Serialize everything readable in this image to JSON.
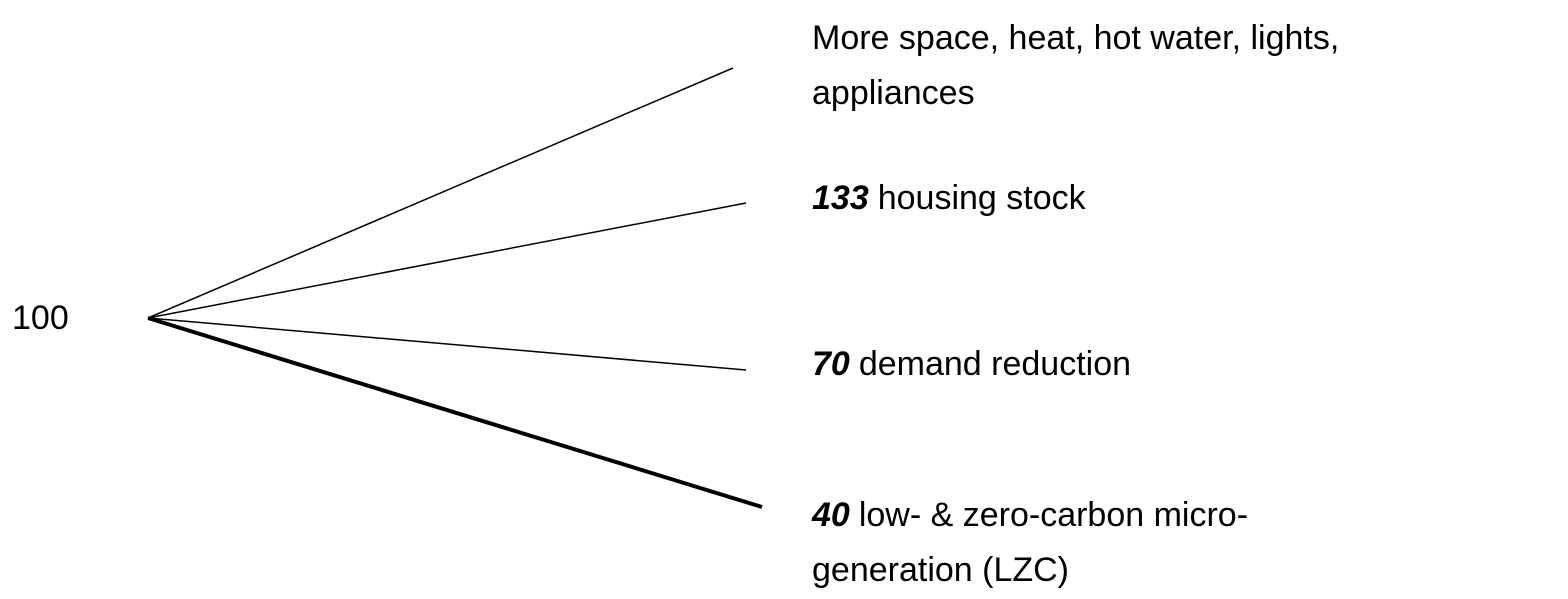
{
  "origin": "100",
  "branches": [
    {
      "lines": [
        "More space, heat, hot water, lights,",
        "appliances"
      ]
    },
    {
      "value": 133,
      "lines": [
        "housing stock"
      ]
    },
    {
      "value": 70,
      "lines": [
        "demand reduction"
      ]
    },
    {
      "value": 40,
      "lines": [
        "low- & zero-carbon micro-",
        "generation (LZC)"
      ]
    }
  ]
}
